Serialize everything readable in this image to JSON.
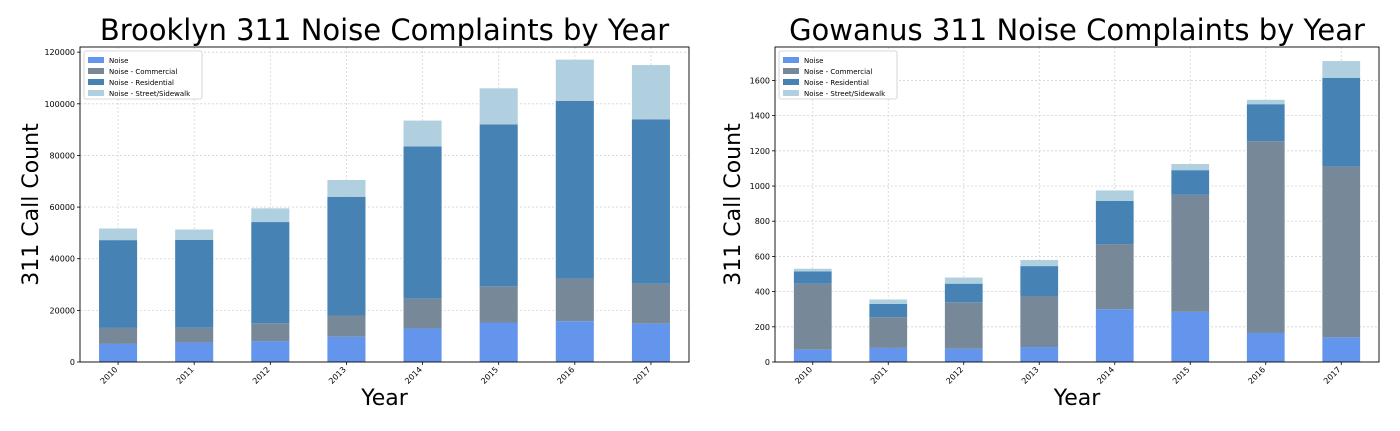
{
  "chart_data": [
    {
      "type": "bar",
      "stacked": true,
      "title": "Brooklyn 311 Noise Complaints by Year",
      "xlabel": "Year",
      "ylabel": "311 Call Count",
      "categories": [
        "2010",
        "2011",
        "2012",
        "2013",
        "2014",
        "2015",
        "2016",
        "2017"
      ],
      "ylim": [
        0,
        122000
      ],
      "yticks": [
        0,
        20000,
        40000,
        60000,
        80000,
        100000,
        120000
      ],
      "grid": true,
      "legend_position": "top-left",
      "series": [
        {
          "name": "Noise",
          "color": "#6495ED",
          "values": [
            7000,
            7500,
            8000,
            9800,
            13000,
            15300,
            15800,
            14800
          ]
        },
        {
          "name": "Noise - Commercial",
          "color": "#778899",
          "values": [
            6200,
            5800,
            7000,
            8200,
            11500,
            14000,
            16500,
            15500
          ]
        },
        {
          "name": "Noise - Residential",
          "color": "#4682B4",
          "values": [
            34000,
            34000,
            39200,
            46000,
            59000,
            62700,
            68800,
            63700
          ]
        },
        {
          "name": "Noise - Street/Sidewalk",
          "color": "#B0CFDF",
          "values": [
            4500,
            4000,
            5300,
            6500,
            10000,
            14000,
            16000,
            21000
          ]
        }
      ]
    },
    {
      "type": "bar",
      "stacked": true,
      "title": "Gowanus 311 Noise Complaints by Year",
      "xlabel": "Year",
      "ylabel": "311 Call Count",
      "categories": [
        "2010",
        "2011",
        "2012",
        "2013",
        "2014",
        "2015",
        "2016",
        "2017"
      ],
      "ylim": [
        0,
        1790
      ],
      "yticks": [
        0,
        200,
        400,
        600,
        800,
        1000,
        1200,
        1400,
        1600
      ],
      "grid": true,
      "legend_position": "top-left",
      "series": [
        {
          "name": "Noise",
          "color": "#6495ED",
          "values": [
            70,
            80,
            75,
            85,
            300,
            285,
            165,
            140
          ]
        },
        {
          "name": "Noise - Commercial",
          "color": "#778899",
          "values": [
            375,
            175,
            265,
            290,
            370,
            665,
            1090,
            970
          ]
        },
        {
          "name": "Noise - Residential",
          "color": "#4682B4",
          "values": [
            70,
            75,
            105,
            170,
            245,
            140,
            210,
            505
          ]
        },
        {
          "name": "Noise - Street/Sidewalk",
          "color": "#B0CFDF",
          "values": [
            15,
            25,
            35,
            35,
            60,
            35,
            25,
            95
          ]
        }
      ]
    }
  ]
}
